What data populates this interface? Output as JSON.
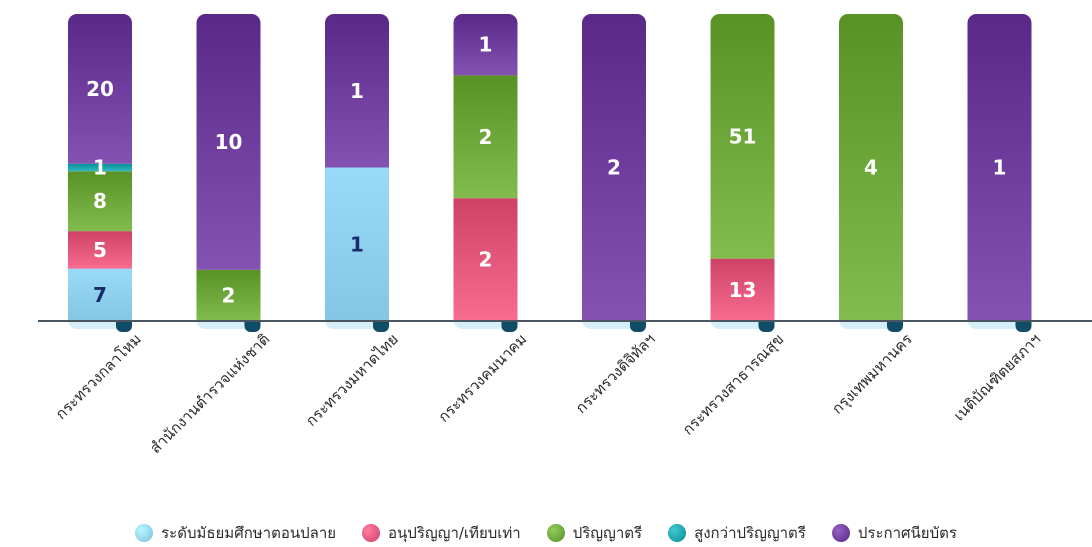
{
  "chart_data": {
    "type": "bar",
    "stacked": true,
    "normalized": true,
    "categories": [
      "กระทรวงกลาโหม",
      "สำนักงานตำรวจแห่งชาติ",
      "กระทรวงมหาดไทย",
      "กระทรวงคมนาคม",
      "กระทรวงดิจิทัลฯ",
      "กระทรวงสาธารณสุข",
      "กรุงเทพมหานคร",
      "เนติบัณฑิตยสภาฯ"
    ],
    "series": [
      {
        "name": "ระดับมัธยมศึกษาตอนปลาย",
        "color": "#8fd0ee",
        "values": [
          7,
          0,
          1,
          0,
          0,
          0,
          0,
          0
        ]
      },
      {
        "name": "อนุปริญญา/เทียบเท่า",
        "color": "#e0547a",
        "values": [
          5,
          0,
          0,
          2,
          0,
          13,
          0,
          0
        ]
      },
      {
        "name": "ปริญญาตรี",
        "color": "#6aa436",
        "values": [
          8,
          2,
          0,
          2,
          0,
          51,
          4,
          0
        ]
      },
      {
        "name": "สูงกว่าปริญญาตรี",
        "color": "#1aa0a8",
        "values": [
          1,
          0,
          0,
          0,
          0,
          0,
          0,
          0
        ]
      },
      {
        "name": "ประกาศนียบัตร",
        "color": "#6b3a9a",
        "values": [
          20,
          10,
          1,
          1,
          2,
          0,
          0,
          1
        ]
      }
    ],
    "legend_position": "bottom",
    "grid": false
  }
}
